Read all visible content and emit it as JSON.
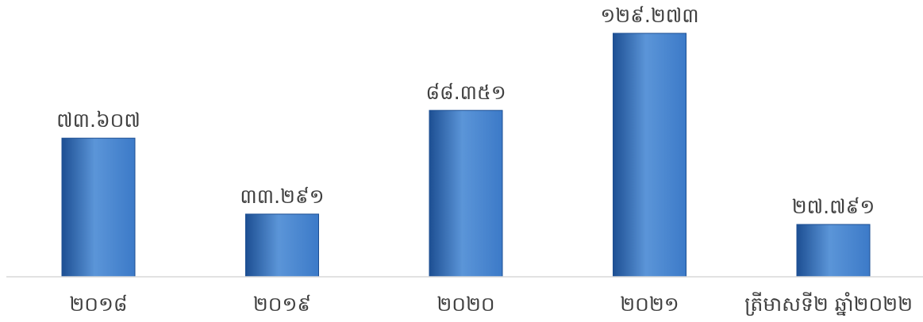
{
  "chart_data": {
    "type": "bar",
    "categories": [
      "២០១៨",
      "២០១៩",
      "២០២០",
      "២០២១",
      "ត្រីមាសទី២ ឆ្នាំ២០២២"
    ],
    "values": [
      73.607,
      33.291,
      88.351,
      129.273,
      27.791
    ],
    "value_labels": [
      "៧៣.៦០៧",
      "៣៣.២៩១",
      "៨៨.៣៥១",
      "១២៩.២៧៣",
      "២៧.៧៩១"
    ],
    "title": "",
    "xlabel": "",
    "ylabel": "",
    "ylim": [
      0,
      140
    ],
    "grid": false,
    "legend": "none",
    "colors": {
      "bar": "#3c7ac8",
      "bar_light": "#5b95d8",
      "bar_dark": "#1d4f93",
      "axis": "#d9d9d9",
      "text": "#404040"
    }
  }
}
